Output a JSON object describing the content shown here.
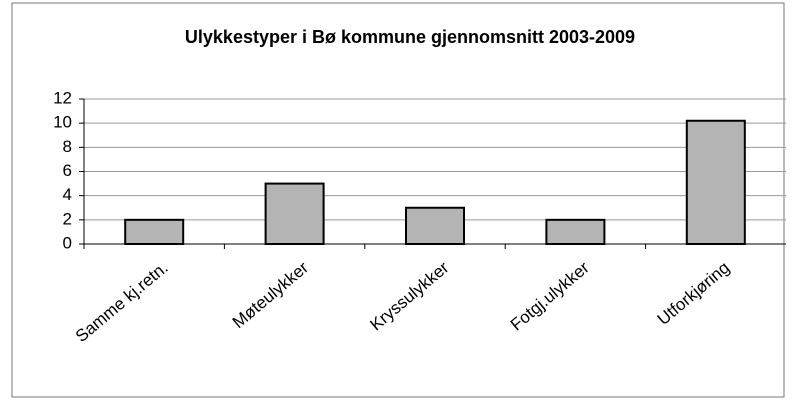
{
  "chart_data": {
    "type": "bar",
    "title": "Ulykkestyper i Bø kommune gjennomsnitt 2003-2009",
    "categories": [
      "Samme kj.retn.",
      "Møteulykker",
      "Kryssulykker",
      "Fotgj.ulykker",
      "Utforkjøring"
    ],
    "values": [
      2,
      5,
      3,
      2,
      10.2
    ],
    "color": "#b4b4b4",
    "ylim": [
      0,
      12
    ],
    "yticks": [
      0,
      2,
      4,
      6,
      8,
      10,
      12
    ],
    "grid": true
  }
}
